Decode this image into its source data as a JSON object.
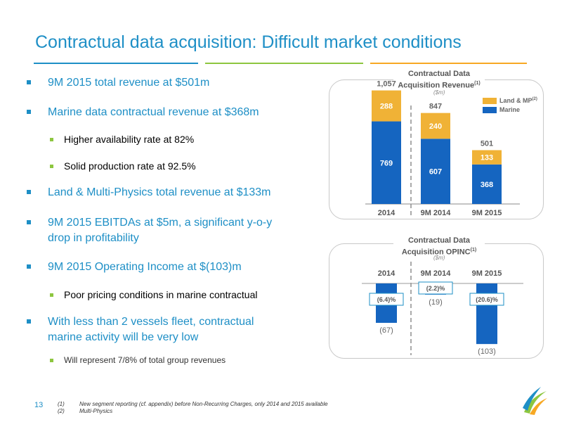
{
  "title": "Contractual data acquisition: Difficult market conditions",
  "colors": {
    "accent": "#1E8FC6",
    "green": "#8DC63F",
    "orange": "#F7A823",
    "marine_blue": "#1565C0",
    "land_orange": "#F0B236"
  },
  "bullets": [
    {
      "level": 1,
      "text": "9M 2015 total revenue at $501m"
    },
    {
      "level": 1,
      "text": "Marine data contractual revenue at $368m"
    },
    {
      "level": 2,
      "text": "Higher availability rate at 82%"
    },
    {
      "level": 2,
      "text": "Solid production rate at 92.5%"
    },
    {
      "level": 1,
      "text": "Land & Multi-Physics total revenue at $133m"
    },
    {
      "level": 1,
      "lines": [
        "9M 2015 EBITDAs at $5m, a significant y-o-y",
        "drop in profitability"
      ]
    },
    {
      "level": 1,
      "text": "9M 2015 Operating Income at $(103)m"
    },
    {
      "level": 2,
      "text": "Poor pricing conditions in marine contractual"
    },
    {
      "level": 1,
      "lines": [
        "With less than 2 vessels fleet, contractual",
        "marine activity will be very low"
      ]
    },
    {
      "level": 2,
      "text": "Will represent 7/8% of total group revenues"
    }
  ],
  "revenue_panel": {
    "title_line1": "Contractual Data",
    "title_line2": "Acquisition Revenue",
    "title_sup": "(1)",
    "unit": "($m)",
    "legend": [
      {
        "label": "Land & MP",
        "sup": "(2)",
        "color": "#F0B236"
      },
      {
        "label": "Marine",
        "color": "#1565C0"
      }
    ]
  },
  "opinc_panel": {
    "title_line1": "Contractual Data",
    "title_line2": "Acquisition OPINC",
    "title_sup": "(1)",
    "unit": "($m)"
  },
  "chart_data": [
    {
      "type": "bar",
      "stacked": true,
      "title": "Contractual Data Acquisition Revenue (1)",
      "unit": "($m)",
      "categories": [
        "2014",
        "9M 2014",
        "9M 2015"
      ],
      "series": [
        {
          "name": "Marine",
          "values": [
            769,
            607,
            368
          ],
          "color": "#1565C0"
        },
        {
          "name": "Land & MP",
          "values": [
            288,
            240,
            133
          ],
          "color": "#F0B236"
        }
      ],
      "totals": [
        "1,057",
        "847",
        "501"
      ],
      "ylim": [
        0,
        1100
      ]
    },
    {
      "type": "bar",
      "title": "Contractual Data Acquisition OPINC (1)",
      "unit": "($m)",
      "categories": [
        "2014",
        "9M 2014",
        "9M 2015"
      ],
      "series": [
        {
          "name": "OPINC",
          "values": [
            -67,
            -19,
            -103
          ],
          "color": "#1565C0"
        }
      ],
      "value_labels": [
        "(67)",
        "(19)",
        "(103)"
      ],
      "margins": [
        "(6.4)%",
        "(2.2)%",
        "(20.6)%"
      ],
      "ylim": [
        -110,
        0
      ]
    }
  ],
  "footer": {
    "page_number": "13",
    "notes": [
      {
        "num": "(1)",
        "text": "New segment reporting (cf. appendix) before Non-Recurring Charges, only 2014 and 2015 available"
      },
      {
        "num": "(2)",
        "text": "Multi-Physics"
      }
    ]
  }
}
